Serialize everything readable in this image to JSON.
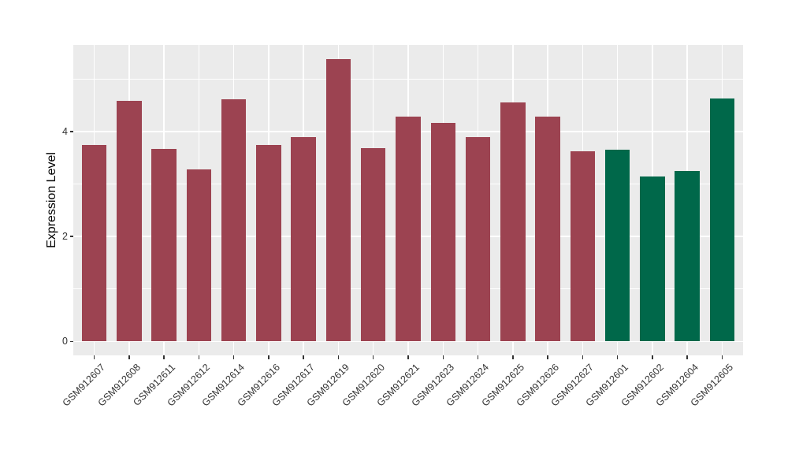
{
  "chart_data": {
    "type": "bar",
    "title": "",
    "xlabel": "",
    "ylabel": "Expression Level",
    "categories": [
      "GSM912607",
      "GSM912608",
      "GSM912611",
      "GSM912612",
      "GSM912614",
      "GSM912616",
      "GSM912617",
      "GSM912619",
      "GSM912620",
      "GSM912621",
      "GSM912623",
      "GSM912624",
      "GSM912625",
      "GSM912626",
      "GSM912627",
      "GSM912601",
      "GSM912602",
      "GSM912604",
      "GSM912605"
    ],
    "values": [
      3.74,
      4.58,
      3.67,
      3.28,
      4.62,
      3.74,
      3.9,
      5.38,
      3.69,
      4.29,
      4.17,
      3.89,
      4.56,
      4.29,
      3.63,
      3.66,
      3.14,
      3.25,
      4.63
    ],
    "groups": [
      "maroon",
      "maroon",
      "maroon",
      "maroon",
      "maroon",
      "maroon",
      "maroon",
      "maroon",
      "maroon",
      "maroon",
      "maroon",
      "maroon",
      "maroon",
      "maroon",
      "maroon",
      "green",
      "green",
      "green",
      "green"
    ],
    "palette": {
      "maroon": "#9C4351",
      "green": "#00684A"
    },
    "ylim": [
      -0.27,
      5.65
    ],
    "yticks": [
      0,
      2,
      4
    ],
    "ytick_labels": [
      "0",
      "2",
      "4"
    ],
    "minor_yticks": [
      1,
      3,
      5
    ],
    "grid": "major-and-minor",
    "legend_position": "none",
    "panel_bg": "#EBEBEB",
    "grid_color": "#FFFFFF",
    "tick_color": "#333333"
  }
}
